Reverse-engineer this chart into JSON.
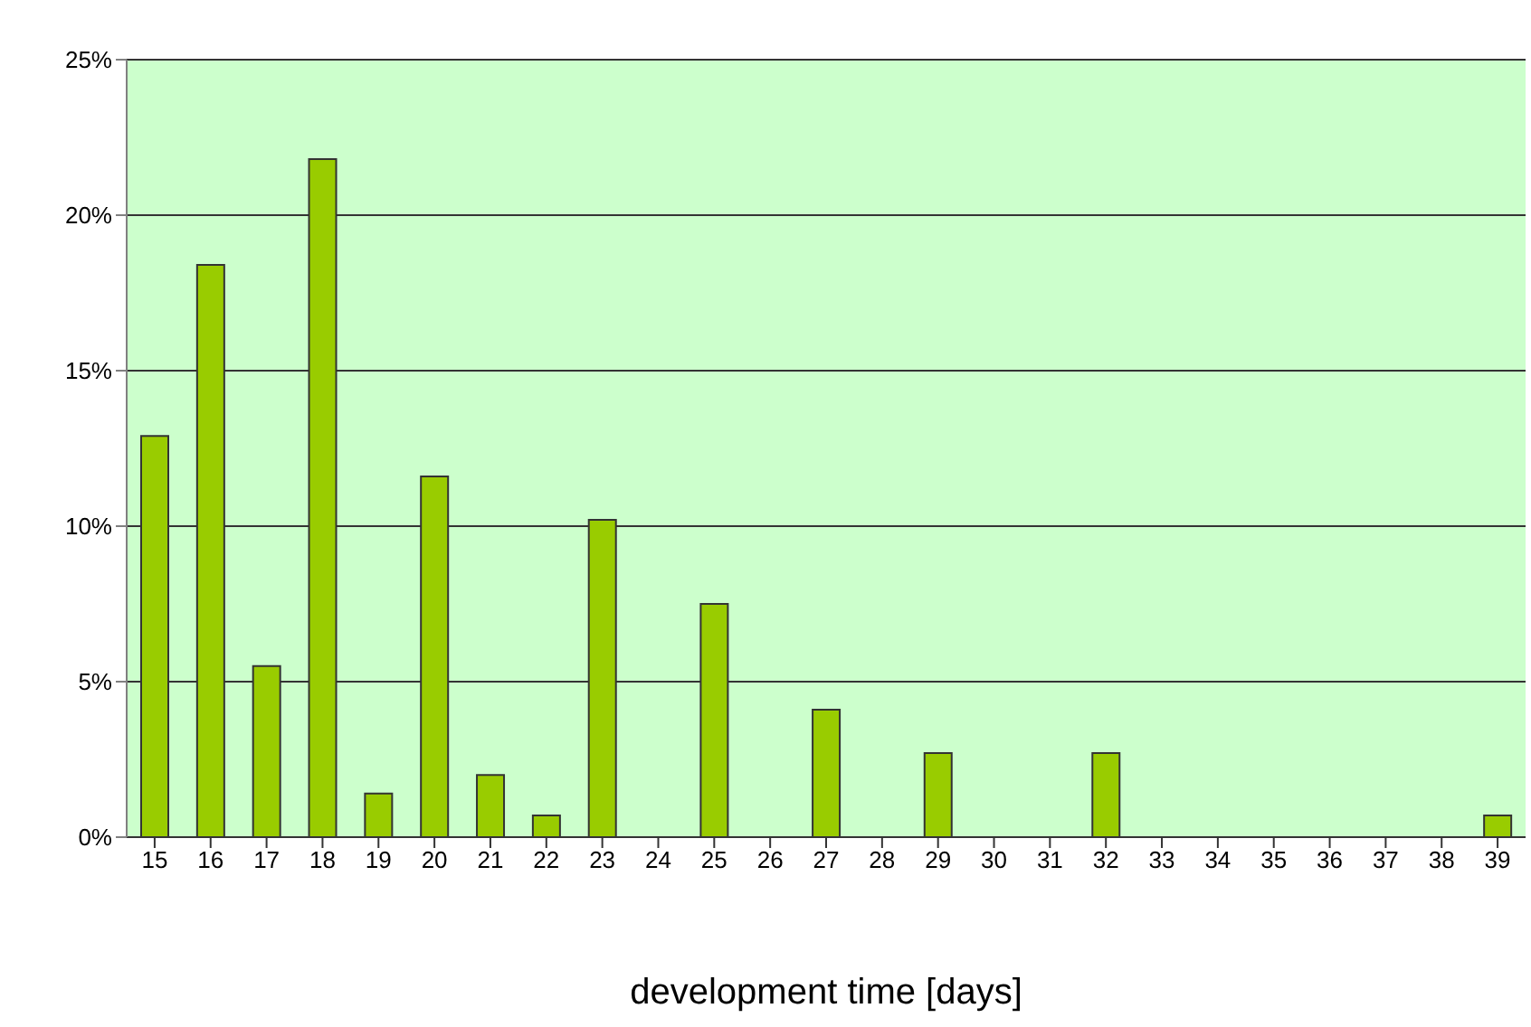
{
  "chart_data": {
    "type": "bar",
    "xlabel": "development time [days]",
    "categories": [
      "15",
      "16",
      "17",
      "18",
      "19",
      "20",
      "21",
      "22",
      "23",
      "24",
      "25",
      "26",
      "27",
      "28",
      "29",
      "30",
      "31",
      "32",
      "33",
      "34",
      "35",
      "36",
      "37",
      "38",
      "39"
    ],
    "values": [
      12.9,
      18.4,
      5.5,
      21.8,
      1.4,
      11.6,
      2.0,
      0.7,
      10.2,
      0,
      7.5,
      0,
      4.1,
      0,
      2.7,
      0,
      0,
      2.7,
      0,
      0,
      0,
      0,
      0,
      0,
      0.7
    ],
    "color": "#99cc00",
    "ylim": [
      0,
      25
    ],
    "yticks": [
      {
        "value": 0,
        "label": "0%"
      },
      {
        "value": 5,
        "label": "5%"
      },
      {
        "value": 10,
        "label": "10%"
      },
      {
        "value": 15,
        "label": "15%"
      },
      {
        "value": 20,
        "label": "20%"
      },
      {
        "value": 25,
        "label": "25%"
      }
    ],
    "grid": "y",
    "legend": false
  }
}
